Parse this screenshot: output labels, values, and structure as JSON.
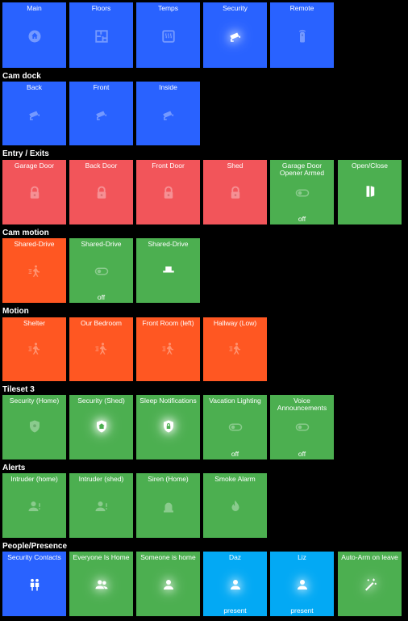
{
  "colors": {
    "blue": "#2962ff",
    "red": "#f2555a",
    "green": "#4caf50",
    "orange": "#ff5722",
    "cyan": "#03a9f4"
  },
  "nav": {
    "tiles": [
      {
        "label": "Main",
        "icon": "home-icon"
      },
      {
        "label": "Floors",
        "icon": "floorplan-icon"
      },
      {
        "label": "Temps",
        "icon": "heater-icon"
      },
      {
        "label": "Security",
        "icon": "cctv-icon"
      },
      {
        "label": "Remote",
        "icon": "remote-icon"
      }
    ]
  },
  "sections": {
    "cam_dock": {
      "title": "Cam dock",
      "tiles": [
        {
          "label": "Back",
          "icon": "cctv-icon"
        },
        {
          "label": "Front",
          "icon": "cctv-icon"
        },
        {
          "label": "Inside",
          "icon": "cctv-icon"
        }
      ]
    },
    "entry": {
      "title": "Entry / Exits",
      "tiles": [
        {
          "label": "Garage Door",
          "icon": "lock-icon"
        },
        {
          "label": "Back Door",
          "icon": "lock-icon"
        },
        {
          "label": "Front Door",
          "icon": "lock-icon"
        },
        {
          "label": "Shed",
          "icon": "lock-icon"
        },
        {
          "label": "Garage Door Opener Armed",
          "icon": "toggle-icon",
          "state": "off"
        },
        {
          "label": "Open/Close",
          "icon": "door-open-icon"
        }
      ]
    },
    "cam_motion": {
      "title": "Cam motion",
      "tiles": [
        {
          "label": "Shared-Drive",
          "icon": "motion-icon"
        },
        {
          "label": "Shared-Drive",
          "icon": "toggle-icon",
          "state": "off"
        },
        {
          "label": "Shared-Drive",
          "icon": "hat-icon"
        }
      ]
    },
    "motion": {
      "title": "Motion",
      "tiles": [
        {
          "label": "Shelter",
          "icon": "motion-icon"
        },
        {
          "label": "Our Bedroom",
          "icon": "motion-icon"
        },
        {
          "label": "Front Room (left)",
          "icon": "motion-icon"
        },
        {
          "label": "Hallway (Low)",
          "icon": "motion-icon"
        }
      ]
    },
    "tileset3": {
      "title": "Tileset 3",
      "tiles": [
        {
          "label": "Security (Home)",
          "icon": "shield-icon"
        },
        {
          "label": "Security (Shed)",
          "icon": "shield-home-icon"
        },
        {
          "label": "Sleep Notifications",
          "icon": "shield-lock-icon"
        },
        {
          "label": "Vacation Lighting",
          "icon": "toggle-icon",
          "state": "off"
        },
        {
          "label": "Voice Announcements",
          "icon": "toggle-icon",
          "state": "off"
        }
      ]
    },
    "alerts": {
      "title": "Alerts",
      "tiles": [
        {
          "label": "Intruder (home)",
          "icon": "person-alert-icon"
        },
        {
          "label": "Intruder (shed)",
          "icon": "person-alert-icon"
        },
        {
          "label": "Siren (Home)",
          "icon": "siren-icon"
        },
        {
          "label": "Smoke Alarm",
          "icon": "fire-icon"
        }
      ]
    },
    "people": {
      "title": "People/Presence",
      "tiles": [
        {
          "label": "Security Contacts",
          "icon": "people-icon"
        },
        {
          "label": "Everyone Is Home",
          "icon": "group-icon"
        },
        {
          "label": "Someone is home",
          "icon": "person-icon"
        },
        {
          "label": "Daz",
          "icon": "person-icon",
          "state": "present"
        },
        {
          "label": "Liz",
          "icon": "person-icon",
          "state": "present"
        },
        {
          "label": "Auto-Arm on leave",
          "icon": "magic-wand-icon"
        }
      ]
    }
  }
}
